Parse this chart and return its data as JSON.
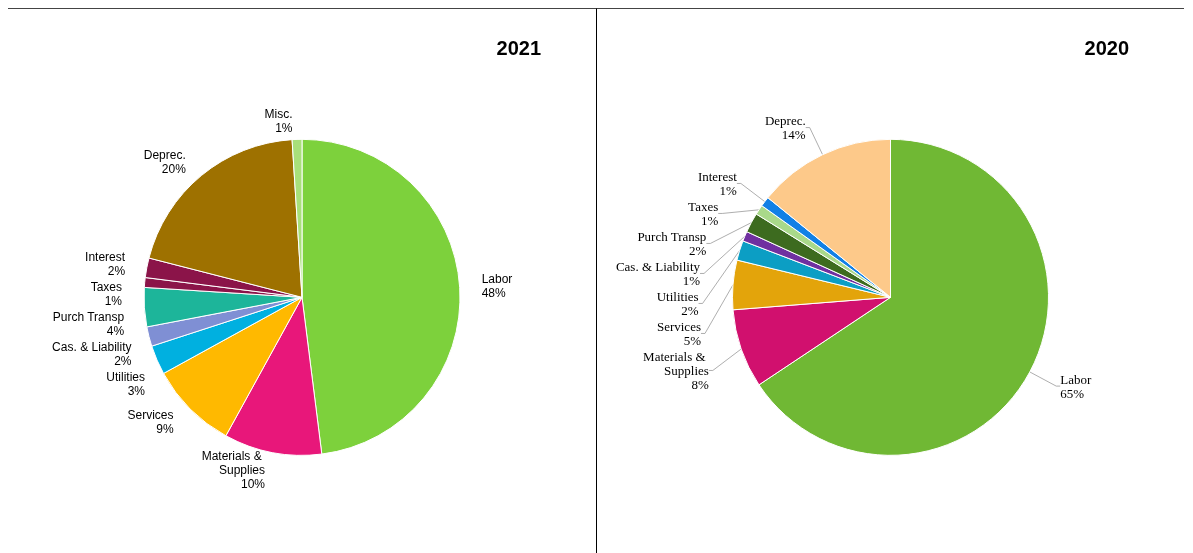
{
  "chart_data": [
    {
      "type": "pie",
      "title": "2021",
      "categories": [
        "Labor",
        "Materials & Supplies",
        "Services",
        "Utilities",
        "Cas. & Liability",
        "Purch Transp",
        "Taxes",
        "Interest",
        "Deprec.",
        "Misc."
      ],
      "values": [
        48,
        10,
        9,
        3,
        2,
        4,
        1,
        2,
        20,
        1
      ],
      "value_labels": [
        "48%",
        "10%",
        "9%",
        "3%",
        "2%",
        "4%",
        "1%",
        "2%",
        "20%",
        "1%"
      ],
      "colors": [
        "#7dd13c",
        "#e8177a",
        "#ffb900",
        "#00b0e0",
        "#7f8fd4",
        "#1db59a",
        "#8b1449",
        "#8b1449",
        "#9e7100",
        "#a8e07a"
      ]
    },
    {
      "type": "pie",
      "title": "2020",
      "categories": [
        "Labor",
        "Materials & Supplies",
        "Services",
        "Utilities",
        "Cas. & Liability",
        "Purch Transp",
        "Taxes",
        "Interest",
        "Deprec."
      ],
      "values": [
        65,
        8,
        5,
        2,
        1,
        2,
        1,
        1,
        14
      ],
      "value_labels": [
        "65%",
        "8%",
        "5%",
        "2%",
        "1%",
        "2%",
        "1%",
        "1%",
        "14%"
      ],
      "colors": [
        "#70b834",
        "#d1106e",
        "#e3a40b",
        "#0c9ec4",
        "#7030a0",
        "#3d6b1f",
        "#a9d98a",
        "#1180e6",
        "#fdc98a"
      ]
    }
  ]
}
